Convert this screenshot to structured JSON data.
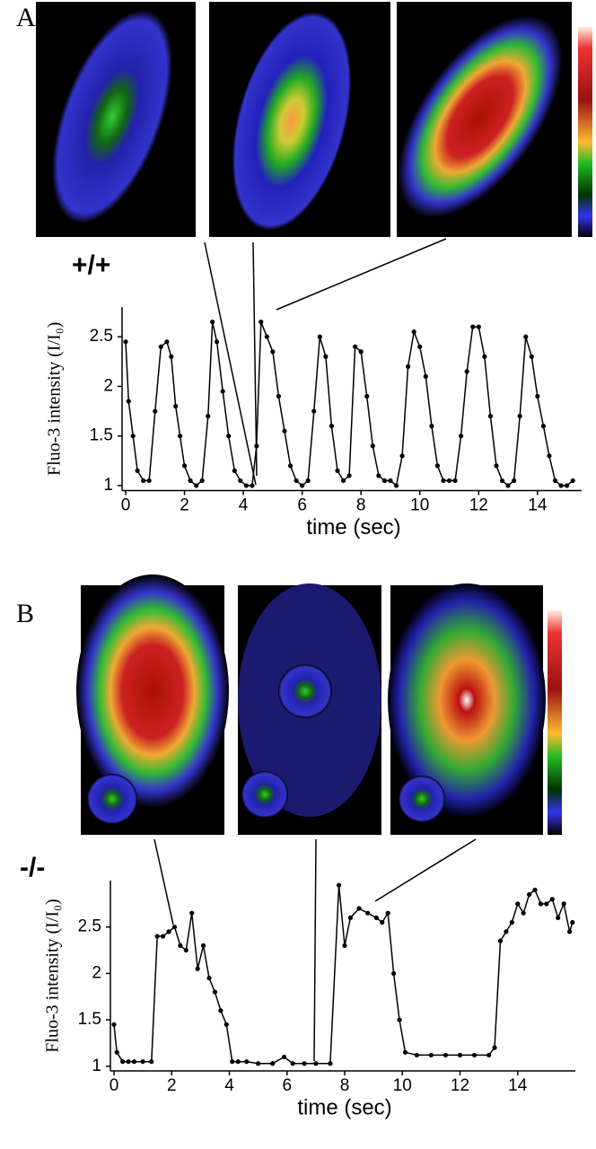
{
  "chart_data": [
    {
      "type": "line",
      "panel": "A",
      "genotype": "+/+",
      "xlabel": "time (sec)",
      "ylabel": "Fluo-3 intensity (I/I₀)",
      "x": [
        0,
        0.1,
        0.25,
        0.4,
        0.6,
        0.8,
        1.0,
        1.2,
        1.4,
        1.55,
        1.7,
        1.85,
        2.0,
        2.2,
        2.4,
        2.6,
        2.8,
        2.95,
        3.1,
        3.3,
        3.5,
        3.7,
        3.9,
        4.1,
        4.3,
        4.45,
        4.6,
        4.8,
        5.0,
        5.2,
        5.4,
        5.6,
        5.8,
        6.0,
        6.2,
        6.4,
        6.6,
        6.8,
        7.0,
        7.2,
        7.4,
        7.6,
        7.8,
        8.0,
        8.2,
        8.4,
        8.6,
        8.8,
        9.0,
        9.2,
        9.4,
        9.6,
        9.8,
        10.0,
        10.2,
        10.4,
        10.6,
        10.8,
        11.0,
        11.2,
        11.4,
        11.6,
        11.8,
        12.0,
        12.2,
        12.4,
        12.6,
        12.8,
        13.0,
        13.2,
        13.4,
        13.6,
        13.8,
        14.0,
        14.2,
        14.4,
        14.6,
        14.8,
        15.0,
        15.2
      ],
      "values": [
        2.45,
        1.85,
        1.5,
        1.15,
        1.05,
        1.05,
        1.75,
        2.4,
        2.45,
        2.3,
        1.8,
        1.5,
        1.2,
        1.05,
        1.0,
        1.05,
        1.7,
        2.65,
        2.45,
        1.95,
        1.5,
        1.15,
        1.05,
        1.0,
        1.0,
        1.4,
        2.65,
        2.5,
        2.35,
        1.9,
        1.55,
        1.2,
        1.05,
        1.0,
        1.05,
        1.75,
        2.5,
        2.3,
        1.6,
        1.15,
        1.05,
        1.1,
        2.4,
        2.35,
        1.9,
        1.4,
        1.1,
        1.05,
        1.05,
        1.0,
        1.3,
        2.2,
        2.55,
        2.4,
        2.1,
        1.6,
        1.2,
        1.05,
        1.05,
        1.05,
        1.5,
        2.15,
        2.6,
        2.6,
        2.3,
        1.7,
        1.2,
        1.05,
        1.0,
        1.05,
        1.7,
        2.5,
        2.3,
        1.9,
        1.6,
        1.3,
        1.05,
        1.0,
        1.0,
        1.05
      ],
      "color": "#000000",
      "xlim": [
        0,
        15.5
      ],
      "ylim": [
        0.95,
        2.8
      ],
      "xticks": [
        0,
        2,
        4,
        6,
        8,
        10,
        12,
        14
      ],
      "yticks": [
        1,
        1.5,
        2,
        2.5
      ]
    },
    {
      "type": "line",
      "panel": "B",
      "genotype": "-/-",
      "xlabel": "time (sec)",
      "ylabel": "Fluo-3 intensity (I/I₀)",
      "x": [
        0,
        0.1,
        0.3,
        0.5,
        0.7,
        1.0,
        1.3,
        1.5,
        1.7,
        1.9,
        2.1,
        2.3,
        2.5,
        2.7,
        2.9,
        3.1,
        3.3,
        3.5,
        3.7,
        3.9,
        4.1,
        4.3,
        4.6,
        5.0,
        5.5,
        5.9,
        6.2,
        6.6,
        7.0,
        7.5,
        7.8,
        8.0,
        8.2,
        8.5,
        8.8,
        9.1,
        9.3,
        9.5,
        9.7,
        9.9,
        10.1,
        10.5,
        11.0,
        11.5,
        12.0,
        12.5,
        13.0,
        13.2,
        13.4,
        13.6,
        13.8,
        14.0,
        14.2,
        14.4,
        14.6,
        14.8,
        15.0,
        15.2,
        15.4,
        15.6,
        15.8,
        15.9
      ],
      "values": [
        1.45,
        1.15,
        1.05,
        1.05,
        1.05,
        1.05,
        1.05,
        2.4,
        2.4,
        2.45,
        2.5,
        2.3,
        2.25,
        2.65,
        2.05,
        2.3,
        1.95,
        1.8,
        1.6,
        1.45,
        1.05,
        1.05,
        1.05,
        1.03,
        1.03,
        1.1,
        1.03,
        1.03,
        1.03,
        1.03,
        2.95,
        2.3,
        2.6,
        2.7,
        2.65,
        2.6,
        2.55,
        2.65,
        2.0,
        1.5,
        1.15,
        1.12,
        1.12,
        1.12,
        1.12,
        1.12,
        1.12,
        1.2,
        2.35,
        2.45,
        2.55,
        2.75,
        2.65,
        2.85,
        2.9,
        2.75,
        2.75,
        2.8,
        2.6,
        2.75,
        2.45,
        2.55
      ],
      "color": "#000000",
      "xlim": [
        0,
        16
      ],
      "ylim": [
        0.95,
        3.0
      ],
      "xticks": [
        0,
        2,
        4,
        6,
        8,
        10,
        12,
        14
      ],
      "yticks": [
        1,
        1.5,
        2,
        2.5
      ]
    }
  ]
}
